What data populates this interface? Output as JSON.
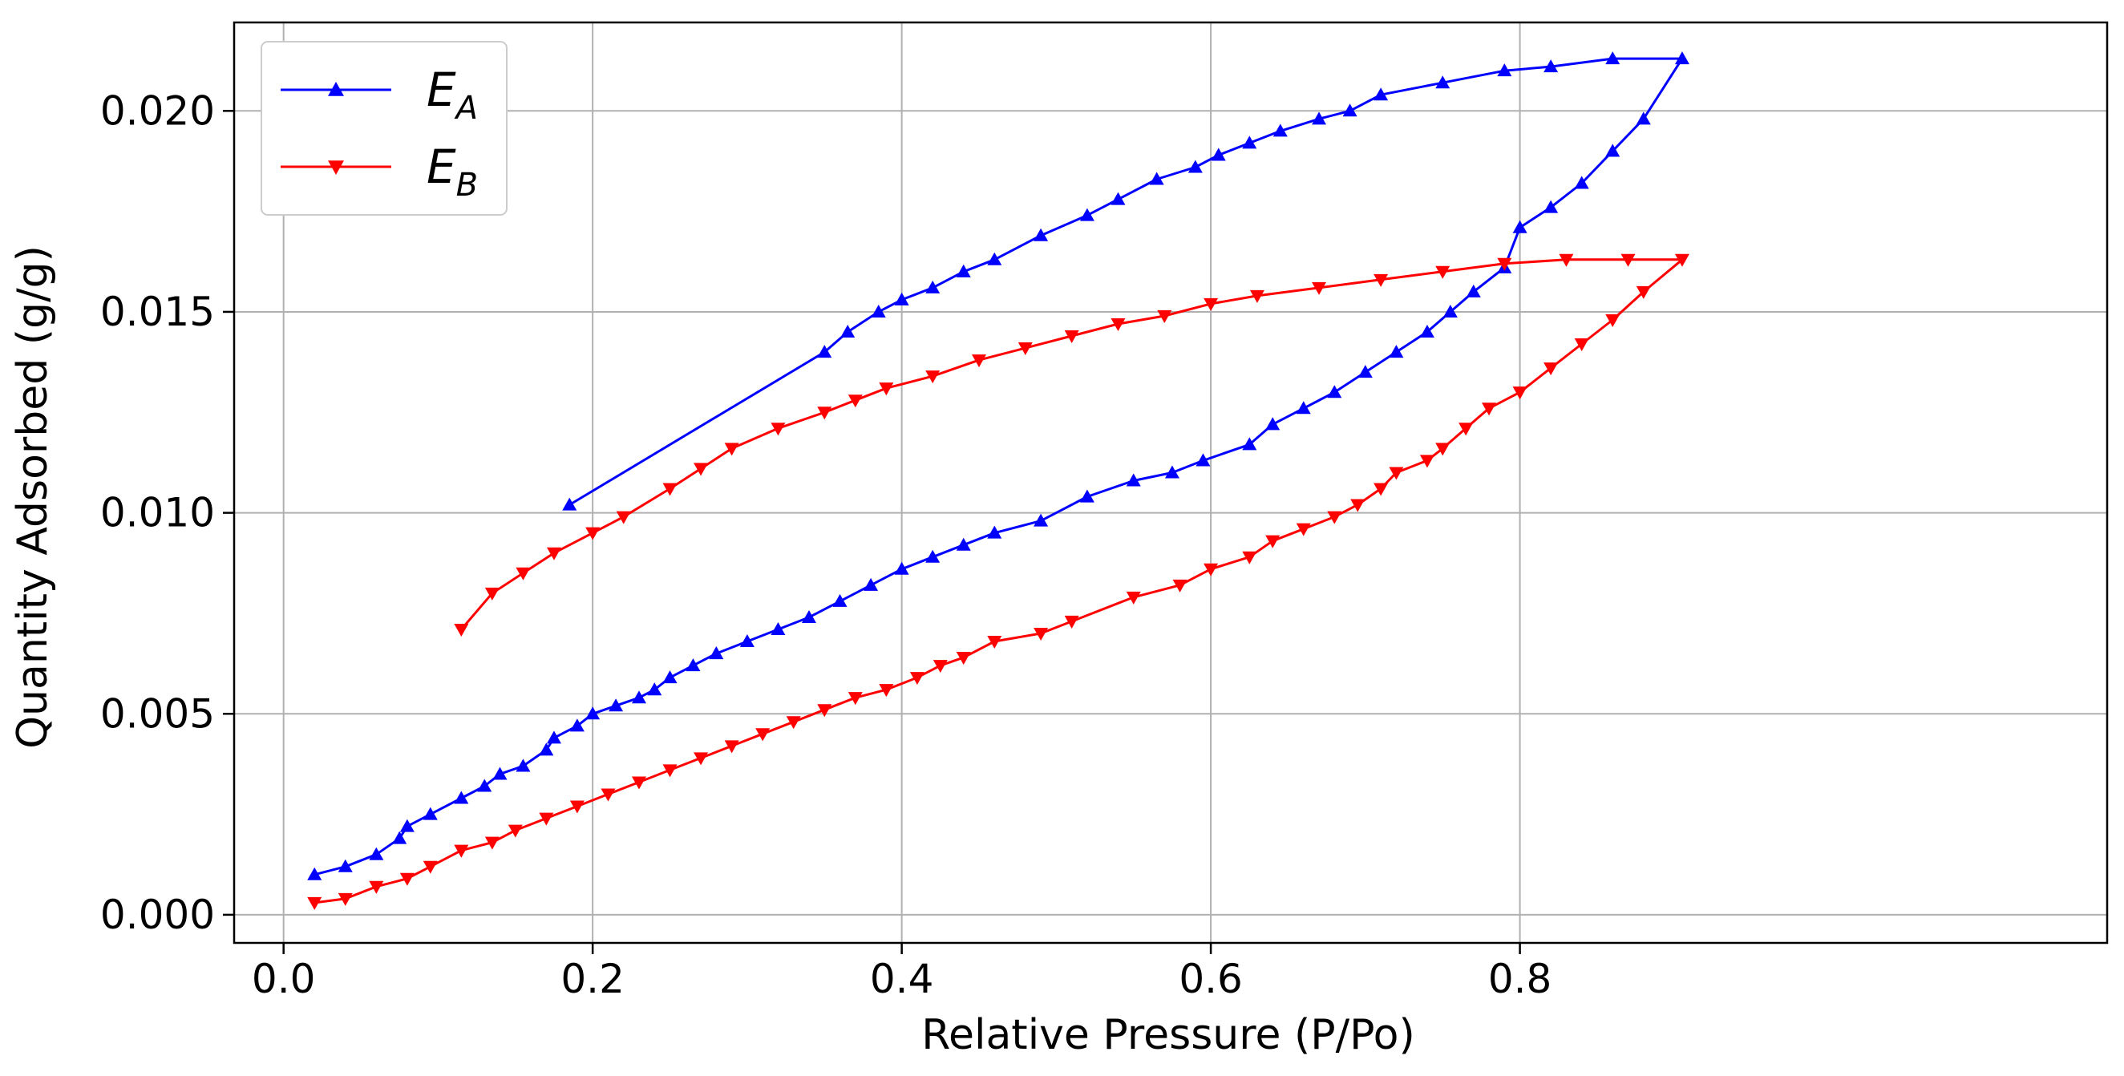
{
  "chart_data": {
    "type": "line",
    "title": "",
    "xlabel": "Relative Pressure (P/Po)",
    "ylabel": "Quantity Adsorbed (g/g)",
    "xlim": [
      -0.032,
      1.18
    ],
    "ylim": [
      -0.0007,
      0.0222
    ],
    "xticks": [
      0.0,
      0.2,
      0.4,
      0.6,
      0.8
    ],
    "xtick_labels": [
      "0.0",
      "0.2",
      "0.4",
      "0.6",
      "0.8"
    ],
    "yticks": [
      0.0,
      0.005,
      0.01,
      0.015,
      0.02
    ],
    "ytick_labels": [
      "0.000",
      "0.005",
      "0.010",
      "0.015",
      "0.020"
    ],
    "grid": true,
    "legend": {
      "position": "top-left"
    },
    "series": [
      {
        "name": "E",
        "subscript": "A",
        "color": "#0000ff",
        "marker": "triangle-up",
        "x": [
          0.02,
          0.04,
          0.06,
          0.075,
          0.08,
          0.095,
          0.115,
          0.13,
          0.14,
          0.155,
          0.17,
          0.175,
          0.19,
          0.2,
          0.215,
          0.23,
          0.24,
          0.25,
          0.265,
          0.28,
          0.3,
          0.32,
          0.34,
          0.36,
          0.38,
          0.4,
          0.42,
          0.44,
          0.46,
          0.49,
          0.52,
          0.55,
          0.575,
          0.595,
          0.625,
          0.64,
          0.66,
          0.68,
          0.7,
          0.72,
          0.74,
          0.755,
          0.77,
          0.79,
          0.8,
          0.82,
          0.84,
          0.86,
          0.88,
          0.905,
          0.86,
          0.82,
          0.79,
          0.75,
          0.71,
          0.69,
          0.67,
          0.645,
          0.625,
          0.605,
          0.59,
          0.565,
          0.54,
          0.52,
          0.49,
          0.46,
          0.44,
          0.42,
          0.4,
          0.385,
          0.365,
          0.35,
          0.185
        ],
        "y": [
          0.001,
          0.0012,
          0.0015,
          0.0019,
          0.0022,
          0.0025,
          0.0029,
          0.0032,
          0.0035,
          0.0037,
          0.0041,
          0.0044,
          0.0047,
          0.005,
          0.0052,
          0.0054,
          0.0056,
          0.0059,
          0.0062,
          0.0065,
          0.0068,
          0.0071,
          0.0074,
          0.0078,
          0.0082,
          0.0086,
          0.0089,
          0.0092,
          0.0095,
          0.0098,
          0.0104,
          0.0108,
          0.011,
          0.0113,
          0.0117,
          0.0122,
          0.0126,
          0.013,
          0.0135,
          0.014,
          0.0145,
          0.015,
          0.0155,
          0.0161,
          0.0171,
          0.0176,
          0.0182,
          0.019,
          0.0198,
          0.0213,
          0.0213,
          0.0211,
          0.021,
          0.0207,
          0.0204,
          0.02,
          0.0198,
          0.0195,
          0.0192,
          0.0189,
          0.0186,
          0.0183,
          0.0178,
          0.0174,
          0.0169,
          0.0163,
          0.016,
          0.0156,
          0.0153,
          0.015,
          0.0145,
          0.014,
          0.0102
        ]
      },
      {
        "name": "E",
        "subscript": "B",
        "color": "#ff0000",
        "marker": "triangle-down",
        "x": [
          0.02,
          0.04,
          0.06,
          0.08,
          0.095,
          0.115,
          0.135,
          0.15,
          0.17,
          0.19,
          0.21,
          0.23,
          0.25,
          0.27,
          0.29,
          0.31,
          0.33,
          0.35,
          0.37,
          0.39,
          0.41,
          0.425,
          0.44,
          0.46,
          0.49,
          0.51,
          0.55,
          0.58,
          0.6,
          0.625,
          0.64,
          0.66,
          0.68,
          0.695,
          0.71,
          0.72,
          0.74,
          0.75,
          0.765,
          0.78,
          0.8,
          0.82,
          0.84,
          0.86,
          0.88,
          0.905,
          0.87,
          0.83,
          0.79,
          0.75,
          0.71,
          0.67,
          0.63,
          0.6,
          0.57,
          0.54,
          0.51,
          0.48,
          0.45,
          0.42,
          0.39,
          0.37,
          0.35,
          0.32,
          0.29,
          0.27,
          0.25,
          0.22,
          0.2,
          0.175,
          0.155,
          0.135,
          0.115
        ],
        "y": [
          0.0003,
          0.0004,
          0.0007,
          0.0009,
          0.0012,
          0.0016,
          0.0018,
          0.0021,
          0.0024,
          0.0027,
          0.003,
          0.0033,
          0.0036,
          0.0039,
          0.0042,
          0.0045,
          0.0048,
          0.0051,
          0.0054,
          0.0056,
          0.0059,
          0.0062,
          0.0064,
          0.0068,
          0.007,
          0.0073,
          0.0079,
          0.0082,
          0.0086,
          0.0089,
          0.0093,
          0.0096,
          0.0099,
          0.0102,
          0.0106,
          0.011,
          0.0113,
          0.0116,
          0.0121,
          0.0126,
          0.013,
          0.0136,
          0.0142,
          0.0148,
          0.0155,
          0.0163,
          0.0163,
          0.0163,
          0.0162,
          0.016,
          0.0158,
          0.0156,
          0.0154,
          0.0152,
          0.0149,
          0.0147,
          0.0144,
          0.0141,
          0.0138,
          0.0134,
          0.0131,
          0.0128,
          0.0125,
          0.0121,
          0.0116,
          0.0111,
          0.0106,
          0.0099,
          0.0095,
          0.009,
          0.0085,
          0.008,
          0.0071
        ]
      }
    ]
  }
}
